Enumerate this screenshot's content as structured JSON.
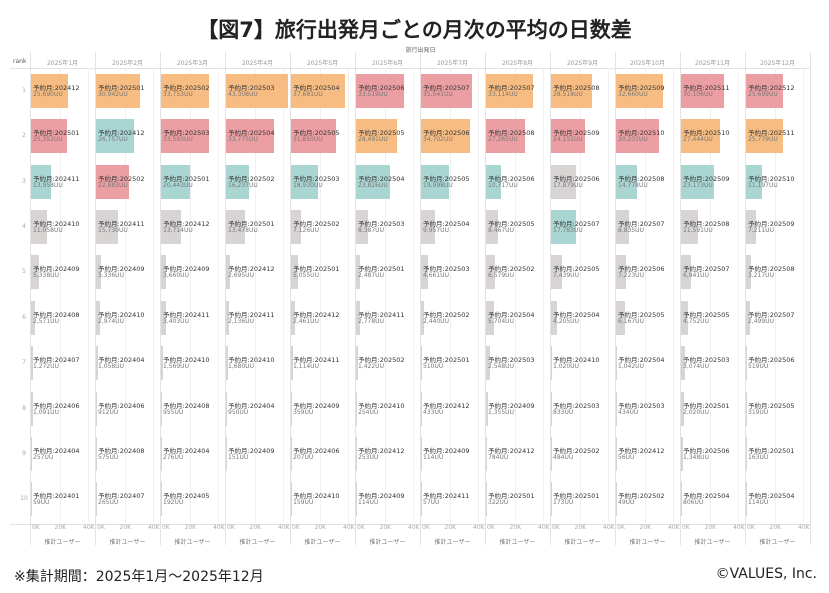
{
  "title": "【図7】旅行出発月ごとの月次の平均の日数差",
  "footer": {
    "note": "※集計期間：2025年1月〜2025年12月",
    "copyright": "©VALUES, Inc."
  },
  "chart_data": {
    "type": "bar",
    "orientation": "horizontal",
    "column_axis_title": "旅行出発日",
    "row_header": "rank",
    "xlabel": "推計ユーザー",
    "xlim": [
      0,
      43308
    ],
    "xticks": [
      "0K",
      "20K",
      "40K"
    ],
    "label_prefix": "予約月:",
    "value_suffix": "UU",
    "colors": {
      "same_month": "#ec9fa3",
      "one_month_before": "#f6bc82",
      "two_months_before": "#a9d6d3",
      "other": "#d8d4d4"
    },
    "ranks": [
      1,
      2,
      3,
      4,
      5,
      6,
      7,
      8,
      9,
      10
    ],
    "columns": [
      {
        "month": "2025年1月",
        "entries": [
          [
            "202412",
            25690
          ],
          [
            "202501",
            25352
          ],
          [
            "202411",
            13958
          ],
          [
            "202410",
            11058
          ],
          [
            "202409",
            5338
          ],
          [
            "202408",
            2571
          ],
          [
            "202407",
            1272
          ],
          [
            "202406",
            1091
          ],
          [
            "202404",
            257
          ],
          [
            "202401",
            59
          ]
        ]
      },
      {
        "month": "2025年2月",
        "entries": [
          [
            "202501",
            30942
          ],
          [
            "202412",
            26757
          ],
          [
            "202502",
            22883
          ],
          [
            "202411",
            15730
          ],
          [
            "202409",
            3336
          ],
          [
            "202410",
            2974
          ],
          [
            "202404",
            1058
          ],
          [
            "202406",
            912
          ],
          [
            "202408",
            575
          ],
          [
            "202407",
            265
          ]
        ]
      },
      {
        "month": "2025年3月",
        "entries": [
          [
            "202502",
            33753
          ],
          [
            "202503",
            33593
          ],
          [
            "202501",
            20443
          ],
          [
            "202412",
            13714
          ],
          [
            "202409",
            3660
          ],
          [
            "202411",
            3403
          ],
          [
            "202410",
            1569
          ],
          [
            "202408",
            955
          ],
          [
            "202404",
            276
          ],
          [
            "202405",
            192
          ]
        ]
      },
      {
        "month": "2025年4月",
        "entries": [
          [
            "202503",
            43308
          ],
          [
            "202504",
            33775
          ],
          [
            "202502",
            16237
          ],
          [
            "202501",
            13478
          ],
          [
            "202412",
            2695
          ],
          [
            "202411",
            2136
          ],
          [
            "202410",
            1680
          ],
          [
            "202404",
            950
          ],
          [
            "202409",
            151
          ]
        ]
      },
      {
        "month": "2025年5月",
        "entries": [
          [
            "202504",
            37681
          ],
          [
            "202505",
            31850
          ],
          [
            "202503",
            18930
          ],
          [
            "202502",
            7126
          ],
          [
            "202501",
            5055
          ],
          [
            "202412",
            2461
          ],
          [
            "202411",
            1114
          ],
          [
            "202409",
            359
          ],
          [
            "202406",
            207
          ],
          [
            "202410",
            159
          ]
        ]
      },
      {
        "month": "2025年6月",
        "entries": [
          [
            "202506",
            33519
          ],
          [
            "202505",
            28491
          ],
          [
            "202504",
            23826
          ],
          [
            "202503",
            8387
          ],
          [
            "202501",
            2487
          ],
          [
            "202411",
            2778
          ],
          [
            "202502",
            1422
          ],
          [
            "202410",
            254
          ],
          [
            "202412",
            253
          ],
          [
            "202409",
            114
          ]
        ]
      },
      {
        "month": "2025年7月",
        "entries": [
          [
            "202507",
            35541
          ],
          [
            "202506",
            34702
          ],
          [
            "202505",
            19998
          ],
          [
            "202504",
            9957
          ],
          [
            "202503",
            4661
          ],
          [
            "202502",
            2440
          ],
          [
            "202501",
            510
          ],
          [
            "202412",
            433
          ],
          [
            "202409",
            114
          ],
          [
            "202411",
            57
          ]
        ]
      },
      {
        "month": "2025年8月",
        "entries": [
          [
            "202507",
            33114
          ],
          [
            "202508",
            27265
          ],
          [
            "202506",
            10717
          ],
          [
            "202505",
            8467
          ],
          [
            "202502",
            6579
          ],
          [
            "202504",
            5704
          ],
          [
            "202503",
            2548
          ],
          [
            "202409",
            1355
          ],
          [
            "202412",
            784
          ],
          [
            "202501",
            322
          ]
        ]
      },
      {
        "month": "2025年9月",
        "entries": [
          [
            "202508",
            28518
          ],
          [
            "202509",
            24151
          ],
          [
            "202506",
            17879
          ],
          [
            "202507",
            17783
          ],
          [
            "202505",
            7439
          ],
          [
            "202504",
            4205
          ],
          [
            "202410",
            1020
          ],
          [
            "202503",
            833
          ],
          [
            "202502",
            484
          ],
          [
            "202501",
            173
          ]
        ]
      },
      {
        "month": "2025年10月",
        "entries": [
          [
            "202509",
            32660
          ],
          [
            "202510",
            30231
          ],
          [
            "202508",
            14778
          ],
          [
            "202507",
            8835
          ],
          [
            "202506",
            7223
          ],
          [
            "202505",
            6167
          ],
          [
            "202504",
            1042
          ],
          [
            "202503",
            434
          ],
          [
            "202412",
            56
          ],
          [
            "202502",
            49
          ]
        ]
      },
      {
        "month": "2025年11月",
        "entries": [
          [
            "202511",
            30106
          ],
          [
            "202510",
            27444
          ],
          [
            "202509",
            23173
          ],
          [
            "202508",
            11591
          ],
          [
            "202507",
            6941
          ],
          [
            "202505",
            4752
          ],
          [
            "202503",
            3074
          ],
          [
            "202501",
            2020
          ],
          [
            "202506",
            1348
          ],
          [
            "202504",
            806
          ]
        ]
      },
      {
        "month": "2025年12月",
        "entries": [
          [
            "202512",
            25699
          ],
          [
            "202511",
            25779
          ],
          [
            "202510",
            11197
          ],
          [
            "202509",
            7211
          ],
          [
            "202508",
            3217
          ],
          [
            "202507",
            2499
          ],
          [
            "202506",
            519
          ],
          [
            "202505",
            319
          ],
          [
            "202501",
            163
          ],
          [
            "202504",
            114
          ]
        ]
      }
    ]
  }
}
